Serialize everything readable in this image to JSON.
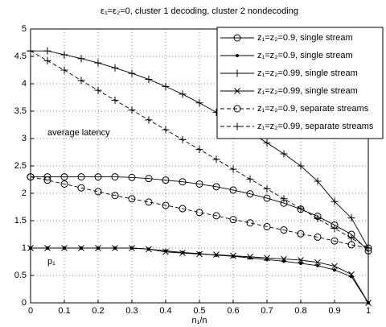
{
  "chart_data": {
    "type": "line",
    "title": "ε₁=ε₂=0, cluster 1 decoding, cluster 2 nondecoding",
    "xlabel": "n₁/n",
    "annotations": [
      {
        "text": "average latency",
        "x": 0.05,
        "y": 3.1
      },
      {
        "text": "p₁",
        "x": 0.05,
        "y": 0.75
      }
    ],
    "x": [
      0,
      0.05,
      0.1,
      0.15,
      0.2,
      0.25,
      0.3,
      0.35,
      0.4,
      0.45,
      0.5,
      0.55,
      0.6,
      0.65,
      0.7,
      0.75,
      0.8,
      0.85,
      0.9,
      0.95,
      1
    ],
    "series": [
      {
        "name": "z₁=z₂=0.9, single stream",
        "color": "#000000",
        "marker": "circle",
        "dashed": false,
        "values": [
          2.3,
          2.3,
          2.3,
          2.3,
          2.3,
          2.3,
          2.29,
          2.27,
          2.24,
          2.21,
          2.17,
          2.12,
          2.06,
          1.99,
          1.91,
          1.82,
          1.71,
          1.58,
          1.42,
          1.25,
          0.95
        ]
      },
      {
        "name": "z₁=z₂=0.9, single stream",
        "color": "#000000",
        "marker": "dot",
        "dashed": false,
        "values": [
          1.0,
          1.0,
          1.0,
          1.0,
          1.0,
          1.0,
          1.0,
          0.98,
          0.95,
          0.92,
          0.9,
          0.87,
          0.85,
          0.82,
          0.79,
          0.76,
          0.72,
          0.68,
          0.6,
          0.48,
          0
        ]
      },
      {
        "name": "z₁=z₂=0.99, single stream",
        "color": "#000000",
        "marker": "plus",
        "dashed": false,
        "values": [
          4.6,
          4.6,
          4.53,
          4.46,
          4.38,
          4.29,
          4.19,
          4.08,
          3.95,
          3.81,
          3.65,
          3.48,
          3.3,
          3.12,
          2.92,
          2.72,
          2.5,
          2.22,
          1.85,
          1.55,
          1.0
        ]
      },
      {
        "name": "z₁=z₂=0.99, single stream",
        "color": "#000000",
        "marker": "x",
        "dashed": false,
        "values": [
          1.0,
          1.0,
          1.0,
          1.0,
          1.0,
          1.0,
          1.0,
          0.98,
          0.93,
          0.91,
          0.89,
          0.88,
          0.86,
          0.84,
          0.82,
          0.8,
          0.78,
          0.74,
          0.67,
          0.52,
          0
        ]
      },
      {
        "name": "z₁=z₂=0.9, separate streams",
        "color": "#000000",
        "marker": "circle",
        "dashed": true,
        "values": [
          2.3,
          2.24,
          2.17,
          2.1,
          2.03,
          1.96,
          1.9,
          1.84,
          1.78,
          1.72,
          1.65,
          1.59,
          1.52,
          1.46,
          1.39,
          1.33,
          1.26,
          1.2,
          1.13,
          1.06,
          1.0
        ]
      },
      {
        "name": "z₁=z₂=0.99, separate streams",
        "color": "#000000",
        "marker": "plus",
        "dashed": true,
        "values": [
          4.6,
          4.42,
          4.25,
          4.06,
          3.88,
          3.7,
          3.52,
          3.34,
          3.16,
          2.98,
          2.8,
          2.62,
          2.44,
          2.26,
          2.08,
          1.9,
          1.72,
          1.54,
          1.36,
          1.18,
          1.0
        ]
      }
    ],
    "xlim": [
      0,
      1
    ],
    "xticks": [
      0,
      0.1,
      0.2,
      0.3,
      0.4,
      0.5,
      0.6,
      0.7,
      0.8,
      0.9,
      1
    ],
    "ylim": [
      0,
      5
    ],
    "yticks": [
      0,
      0.5,
      1,
      1.5,
      2,
      2.5,
      3,
      3.5,
      4,
      4.5,
      5
    ],
    "grid": true,
    "legend": "upper right"
  }
}
